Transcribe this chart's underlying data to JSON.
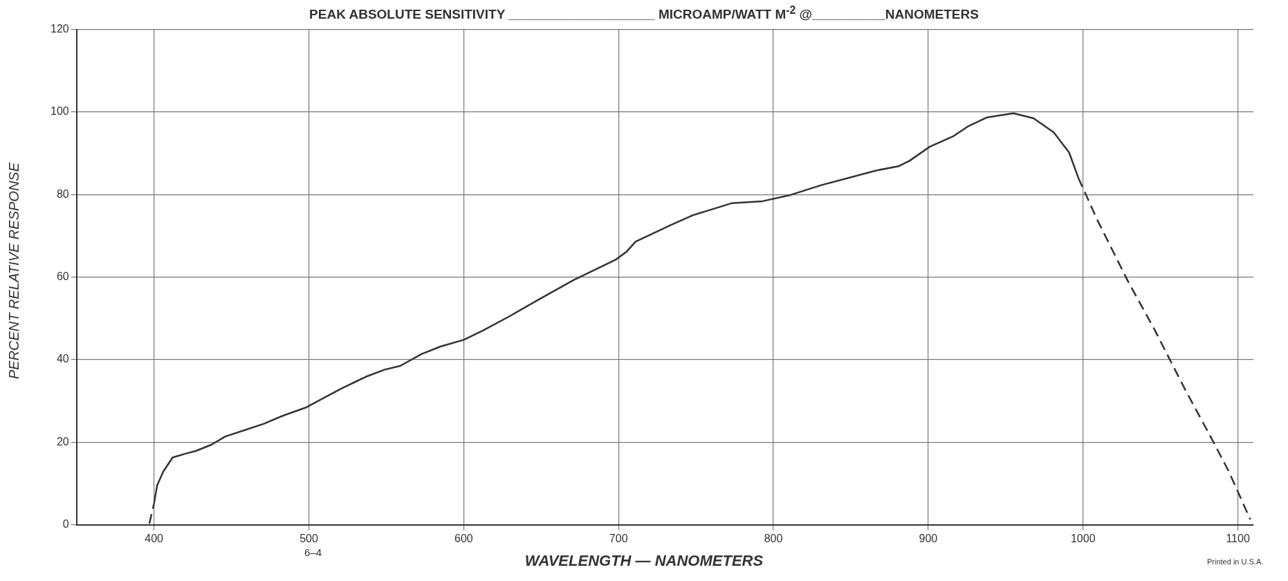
{
  "chart_data": {
    "type": "line",
    "title": "PEAK ABSOLUTE SENSITIVITY ____________________ MICROAMP/WATT M$^{-2}$ @__________NANOMETERS",
    "xlabel": "WAVELENGTH — NANOMETERS",
    "ylabel": "PERCENT RELATIVE RESPONSE",
    "annotations": [
      "6–4",
      "Printed in U.S.A."
    ],
    "xlim": [
      350,
      1110
    ],
    "xticks": [
      400,
      500,
      600,
      700,
      800,
      900,
      1000,
      1100
    ],
    "ylim": [
      0,
      120
    ],
    "yticks": [
      0,
      20,
      40,
      60,
      80,
      100,
      120
    ],
    "grid": true,
    "legend": false,
    "marker": "none",
    "series": [
      {
        "color": "#333333",
        "line_style": "solid",
        "x": [
          400,
          402,
          406,
          412,
          420,
          427,
          437,
          446,
          459,
          471,
          483,
          498,
          510,
          522,
          537,
          549,
          559,
          573,
          585,
          600,
          612,
          629,
          649,
          671,
          698,
          705,
          711,
          733,
          748,
          773,
          793,
          811,
          831,
          851,
          866,
          881,
          888,
          901,
          916,
          926,
          938,
          955,
          968,
          981,
          991,
          997
        ],
        "values": [
          5.1,
          9.5,
          12.9,
          16.3,
          17.2,
          17.9,
          19.4,
          21.4,
          23,
          24.5,
          26.4,
          28.4,
          30.8,
          33.2,
          35.9,
          37.6,
          38.5,
          41.4,
          43.2,
          44.8,
          47,
          50.4,
          54.7,
          59.3,
          64.2,
          66.1,
          68.6,
          72.5,
          75,
          77.9,
          78.4,
          79.9,
          82.3,
          84.3,
          85.8,
          86.9,
          88.2,
          91.6,
          94.1,
          96.6,
          98.7,
          99.7,
          98.5,
          95.1,
          90.2,
          84
        ]
      },
      {
        "color": "#333333",
        "line_style": "dashed",
        "x": [
          397,
          400,
          700,
          997,
          1009,
          1029,
          1046,
          1066,
          1083,
          1094,
          1108
        ],
        "values": [
          0.3,
          5.1,
          null,
          84,
          74,
          59,
          47.4,
          32.7,
          20.9,
          13,
          1.3
        ]
      }
    ]
  }
}
